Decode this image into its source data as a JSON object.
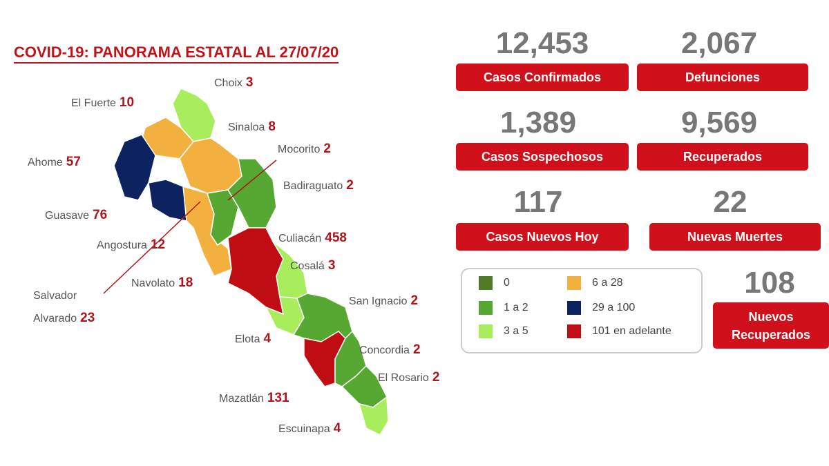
{
  "header": {
    "title": "COVID-19: PANORAMA ESTATAL AL 27/07/20"
  },
  "municipalities": [
    {
      "name": "Choix",
      "value": 3
    },
    {
      "name": "El Fuerte",
      "value": 10
    },
    {
      "name": "Sinaloa",
      "value": 8
    },
    {
      "name": "Mocorito",
      "value": 2
    },
    {
      "name": "Ahome",
      "value": 57
    },
    {
      "name": "Badiraguato",
      "value": 2
    },
    {
      "name": "Guasave",
      "value": 76
    },
    {
      "name": "Culiacán",
      "value": 458
    },
    {
      "name": "Angostura",
      "value": 12
    },
    {
      "name": "Cosalá",
      "value": 3
    },
    {
      "name": "Navolato",
      "value": 18
    },
    {
      "name": "Salvador Alvarado",
      "value": 23
    },
    {
      "name": "San Ignacio",
      "value": 2
    },
    {
      "name": "Elota",
      "value": 4
    },
    {
      "name": "Concordia",
      "value": 2
    },
    {
      "name": "El Rosario",
      "value": 2
    },
    {
      "name": "Mazatlán",
      "value": 131
    },
    {
      "name": "Escuinapa",
      "value": 4
    }
  ],
  "stats": [
    {
      "value": "12,453",
      "label": "Casos Confirmados"
    },
    {
      "value": "2,067",
      "label": "Defunciones"
    },
    {
      "value": "1,389",
      "label": "Casos Sospechosos"
    },
    {
      "value": "9,569",
      "label": "Recuperados"
    },
    {
      "value": "117",
      "label": "Casos Nuevos Hoy"
    },
    {
      "value": "22",
      "label": "Nuevas Muertes"
    },
    {
      "value": "108",
      "label": "Nuevos Recuperados"
    }
  ],
  "legend": [
    {
      "label": "0",
      "color": "#4f7a2a"
    },
    {
      "label": "1 a 2",
      "color": "#56a832"
    },
    {
      "label": "3 a 5",
      "color": "#a8ee5c"
    },
    {
      "label": "6 a 28",
      "color": "#f2b13f"
    },
    {
      "label": "29 a 100",
      "color": "#0d2360"
    },
    {
      "label": "101 en adelante",
      "color": "#c00d14"
    }
  ]
}
